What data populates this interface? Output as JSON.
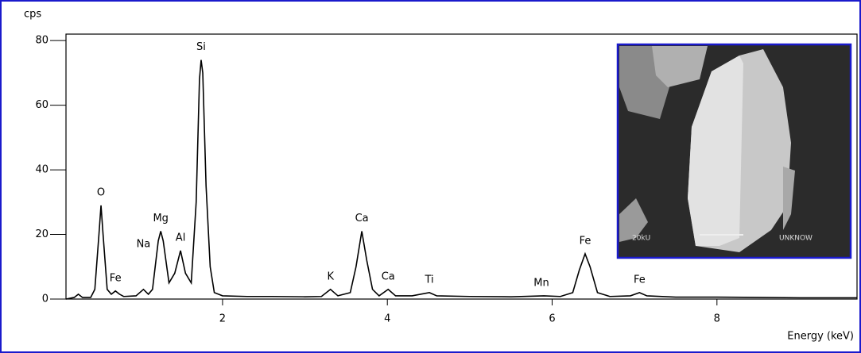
{
  "chart_data": {
    "type": "line",
    "y_label": "cps",
    "x_label": "Energy (keV)",
    "xlim": [
      0.1,
      9.7
    ],
    "ylim": [
      0,
      82
    ],
    "xticks": [
      2,
      4,
      6,
      8
    ],
    "yticks": [
      0,
      20,
      40,
      60,
      80
    ],
    "series": [
      {
        "color": "#000000",
        "x": [
          0.1,
          0.2,
          0.25,
          0.3,
          0.4,
          0.45,
          0.5,
          0.525,
          0.55,
          0.6,
          0.65,
          0.7,
          0.75,
          0.8,
          0.95,
          1.04,
          1.1,
          1.15,
          1.22,
          1.25,
          1.28,
          1.35,
          1.42,
          1.49,
          1.55,
          1.62,
          1.68,
          1.72,
          1.74,
          1.76,
          1.8,
          1.85,
          1.9,
          2.0,
          2.3,
          2.6,
          3.0,
          3.2,
          3.31,
          3.4,
          3.55,
          3.62,
          3.69,
          3.75,
          3.82,
          3.9,
          4.01,
          4.1,
          4.3,
          4.51,
          4.6,
          5.0,
          5.5,
          5.9,
          6.1,
          6.25,
          6.33,
          6.4,
          6.46,
          6.55,
          6.7,
          6.95,
          7.06,
          7.15,
          7.5,
          8.0,
          8.5,
          9.0,
          9.7
        ],
        "values": [
          0,
          0.5,
          1.5,
          0.5,
          0.5,
          3,
          20,
          29,
          20,
          3,
          1.5,
          2.5,
          1.5,
          0.8,
          1,
          3,
          1.5,
          3,
          18,
          21,
          18,
          5,
          8,
          15,
          8,
          5,
          30,
          68,
          74,
          70,
          35,
          10,
          2,
          1,
          0.8,
          0.8,
          0.7,
          0.8,
          3,
          1,
          2,
          10,
          21,
          12,
          3,
          1,
          3,
          1,
          1,
          2,
          1,
          0.8,
          0.7,
          1,
          0.8,
          2,
          9,
          14,
          10,
          2,
          0.8,
          1,
          2,
          1,
          0.6,
          0.6,
          0.5,
          0.4,
          0.4
        ]
      }
    ],
    "annotations": [
      {
        "text": "O",
        "x": 0.525,
        "y": 29
      },
      {
        "text": "Fe",
        "x": 0.7,
        "y": 2.5
      },
      {
        "text": "Na",
        "x": 1.04,
        "y": 13
      },
      {
        "text": "Mg",
        "x": 1.25,
        "y": 21
      },
      {
        "text": "Al",
        "x": 1.49,
        "y": 15
      },
      {
        "text": "Si",
        "x": 1.74,
        "y": 74
      },
      {
        "text": "K",
        "x": 3.31,
        "y": 3
      },
      {
        "text": "Ca",
        "x": 3.69,
        "y": 21
      },
      {
        "text": "Ca",
        "x": 4.01,
        "y": 3
      },
      {
        "text": "Ti",
        "x": 4.51,
        "y": 2
      },
      {
        "text": "Mn",
        "x": 5.87,
        "y": 1
      },
      {
        "text": "Fe",
        "x": 6.4,
        "y": 14
      },
      {
        "text": "Fe",
        "x": 7.06,
        "y": 2
      }
    ]
  },
  "inset": {
    "texts": [
      "20kU",
      "UNKNOW"
    ]
  }
}
